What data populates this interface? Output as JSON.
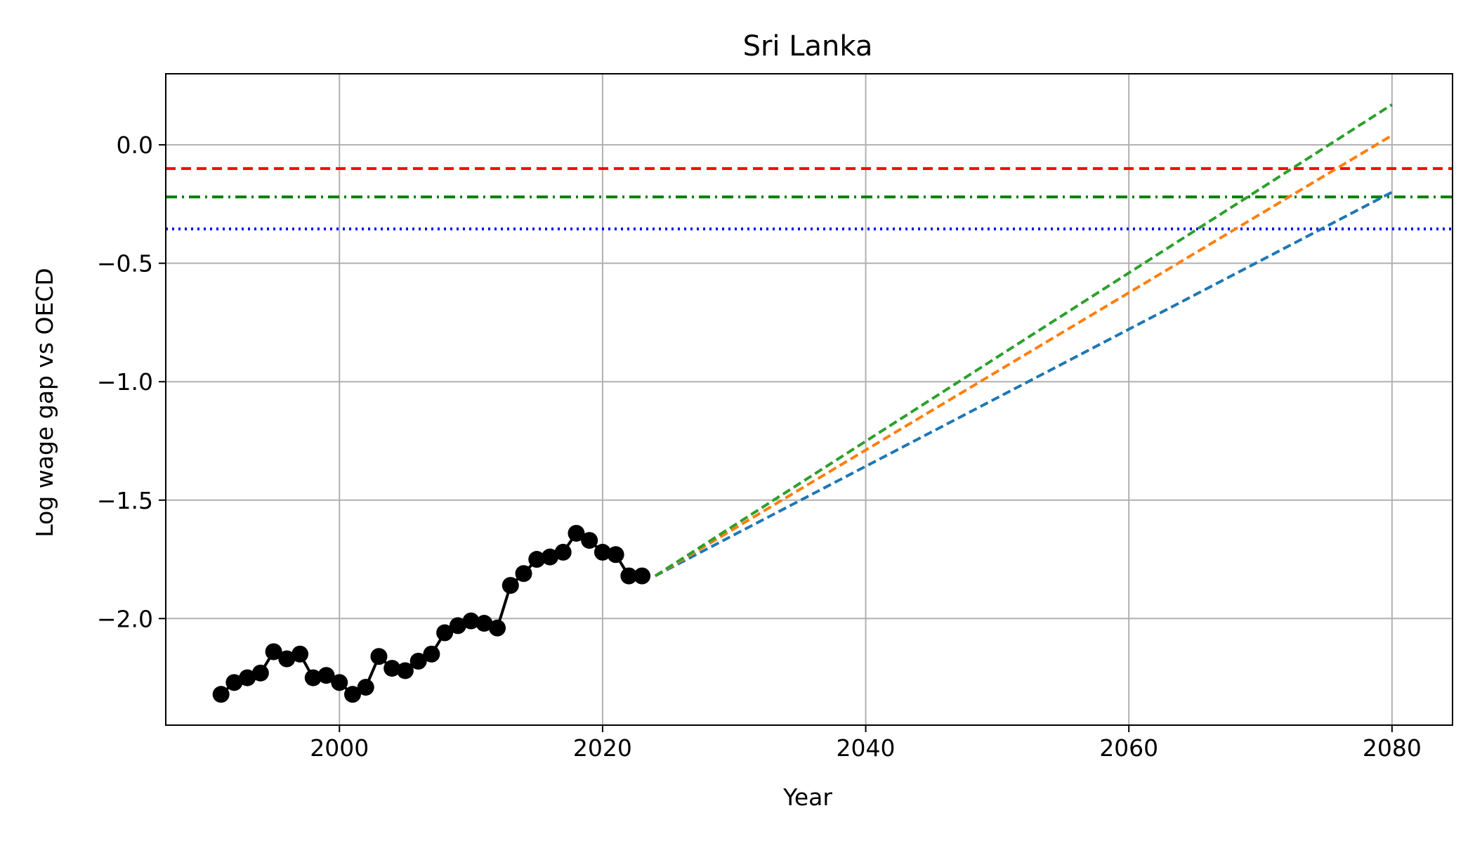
{
  "chart_data": {
    "type": "line",
    "title": "Sri Lanka",
    "xlabel": "Year",
    "ylabel": "Log wage gap vs OECD",
    "xlim": [
      1986.8,
      2084.6
    ],
    "ylim": [
      -2.45,
      0.3
    ],
    "x_ticks": [
      2000,
      2020,
      2040,
      2060,
      2080
    ],
    "y_ticks": [
      0.0,
      -0.5,
      -1.0,
      -1.5,
      -2.0
    ],
    "x_tick_labels": [
      "2000",
      "2020",
      "2040",
      "2060",
      "2080"
    ],
    "y_tick_labels": [
      "0.0",
      "−0.5",
      "−1.0",
      "−1.5",
      "−2.0"
    ],
    "grid": true,
    "legend": "none",
    "historical": {
      "color": "#000000",
      "x": [
        1991,
        1992,
        1993,
        1994,
        1995,
        1996,
        1997,
        1998,
        1999,
        2000,
        2001,
        2002,
        2003,
        2004,
        2005,
        2006,
        2007,
        2008,
        2009,
        2010,
        2011,
        2012,
        2013,
        2014,
        2015,
        2016,
        2017,
        2018,
        2019,
        2020,
        2021,
        2022,
        2023
      ],
      "y": [
        -2.32,
        -2.27,
        -2.25,
        -2.23,
        -2.14,
        -2.17,
        -2.15,
        -2.25,
        -2.24,
        -2.27,
        -2.32,
        -2.29,
        -2.16,
        -2.21,
        -2.22,
        -2.18,
        -2.15,
        -2.06,
        -2.03,
        -2.01,
        -2.02,
        -2.04,
        -1.86,
        -1.81,
        -1.75,
        -1.74,
        -1.72,
        -1.64,
        -1.67,
        -1.72,
        -1.73,
        -1.82,
        -1.82
      ]
    },
    "projections": [
      {
        "color": "#1f77b4",
        "x": [
          2024,
          2080
        ],
        "y": [
          -1.82,
          -0.2
        ]
      },
      {
        "color": "#ff7f0e",
        "x": [
          2024,
          2080
        ],
        "y": [
          -1.82,
          0.04
        ]
      },
      {
        "color": "#2ca02c",
        "x": [
          2024,
          2080
        ],
        "y": [
          -1.82,
          0.17
        ]
      }
    ],
    "reference_lines": [
      {
        "y": -0.1,
        "color": "#ff0000",
        "style": "dashed"
      },
      {
        "y": -0.22,
        "color": "#008000",
        "style": "dashdot"
      },
      {
        "y": -0.355,
        "color": "#0000ff",
        "style": "dotted"
      }
    ]
  }
}
